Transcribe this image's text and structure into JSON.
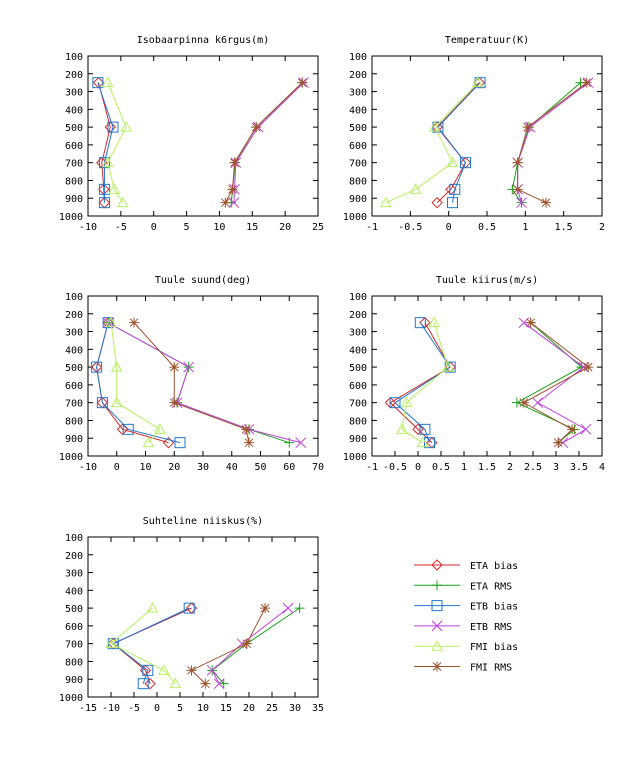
{
  "series_styles": [
    {
      "name": "ETA bias",
      "color": "#d62728",
      "marker": "diamond"
    },
    {
      "name": "ETA RMS",
      "color": "#1aa31a",
      "marker": "plus"
    },
    {
      "name": "ETB bias",
      "color": "#1f77d0",
      "marker": "square"
    },
    {
      "name": "ETB RMS",
      "color": "#c040e0",
      "marker": "cross"
    },
    {
      "name": "FMI bias",
      "color": "#b8f060",
      "marker": "triangle"
    },
    {
      "name": "FMI RMS",
      "color": "#a0522d",
      "marker": "star"
    }
  ],
  "chart_data": [
    {
      "type": "line",
      "title": "Isobaarpinna k6rgus(m)",
      "xlim": [
        -10,
        25
      ],
      "xticks": [
        -10,
        -5,
        0,
        5,
        10,
        15,
        20,
        25
      ],
      "ylim": [
        1000,
        100
      ],
      "yticks": [
        100,
        200,
        300,
        400,
        500,
        600,
        700,
        800,
        900,
        1000
      ],
      "y": [
        925,
        850,
        700,
        500,
        250
      ],
      "series": [
        {
          "name": "ETA bias",
          "x": [
            -7.5,
            -7.6,
            -7.9,
            -6.6,
            -8.4
          ]
        },
        {
          "name": "ETA RMS",
          "x": [
            11.8,
            12.0,
            12.4,
            15.6,
            22.6
          ]
        },
        {
          "name": "ETB bias",
          "x": [
            -7.5,
            -7.5,
            -7.5,
            -6.2,
            -8.5
          ]
        },
        {
          "name": "ETB RMS",
          "x": [
            12.2,
            12.3,
            12.5,
            15.9,
            22.8
          ]
        },
        {
          "name": "FMI bias",
          "x": [
            -4.7,
            -6.0,
            -7.0,
            -4.2,
            -7.0
          ]
        },
        {
          "name": "FMI RMS",
          "x": [
            10.9,
            12.0,
            12.3,
            15.6,
            22.6
          ]
        }
      ]
    },
    {
      "type": "line",
      "title": "Temperatuur(K)",
      "xlim": [
        -1,
        2
      ],
      "xticks": [
        -1,
        -0.5,
        0,
        0.5,
        1,
        1.5,
        2
      ],
      "ylim": [
        1000,
        100
      ],
      "yticks": [
        100,
        200,
        300,
        400,
        500,
        600,
        700,
        800,
        900,
        1000
      ],
      "y": [
        925,
        850,
        700,
        500,
        250
      ],
      "series": [
        {
          "name": "ETA bias",
          "x": [
            -0.15,
            0.03,
            0.22,
            -0.15,
            0.4
          ]
        },
        {
          "name": "ETA RMS",
          "x": [
            0.95,
            0.83,
            0.9,
            1.05,
            1.72
          ]
        },
        {
          "name": "ETB bias",
          "x": [
            0.05,
            0.08,
            0.22,
            -0.14,
            0.41
          ]
        },
        {
          "name": "ETB RMS",
          "x": [
            0.95,
            0.9,
            0.9,
            1.06,
            1.82
          ]
        },
        {
          "name": "FMI bias",
          "x": [
            -0.82,
            -0.43,
            0.05,
            -0.18,
            0.38
          ]
        },
        {
          "name": "FMI RMS",
          "x": [
            1.27,
            0.9,
            0.9,
            1.03,
            1.8
          ]
        }
      ]
    },
    {
      "type": "line",
      "title": "Tuule suund(deg)",
      "xlim": [
        -10,
        70
      ],
      "xticks": [
        -10,
        0,
        10,
        20,
        30,
        40,
        50,
        60,
        70
      ],
      "ylim": [
        1000,
        100
      ],
      "yticks": [
        100,
        200,
        300,
        400,
        500,
        600,
        700,
        800,
        900,
        1000
      ],
      "y": [
        925,
        850,
        700,
        500,
        250
      ],
      "series": [
        {
          "name": "ETA bias",
          "x": [
            18,
            2,
            -5,
            -7,
            -3
          ]
        },
        {
          "name": "ETA RMS",
          "x": [
            60,
            46,
            21,
            25,
            -3
          ]
        },
        {
          "name": "ETB bias",
          "x": [
            22,
            4,
            -5,
            -7,
            -3
          ]
        },
        {
          "name": "ETB RMS",
          "x": [
            64,
            46,
            21,
            25,
            -3
          ]
        },
        {
          "name": "FMI bias",
          "x": [
            11,
            15,
            0,
            0,
            -2
          ]
        },
        {
          "name": "FMI RMS",
          "x": [
            46,
            45,
            20,
            20,
            6
          ]
        }
      ]
    },
    {
      "type": "line",
      "title": "Tuule kiirus(m/s)",
      "xlim": [
        -1,
        4
      ],
      "xticks": [
        -1,
        -0.5,
        0,
        0.5,
        1,
        1.5,
        2,
        2.5,
        3,
        3.5,
        4
      ],
      "ylim": [
        1000,
        100
      ],
      "yticks": [
        100,
        200,
        300,
        400,
        500,
        600,
        700,
        800,
        900,
        1000
      ],
      "y": [
        925,
        850,
        700,
        500,
        250
      ],
      "series": [
        {
          "name": "ETA bias",
          "x": [
            0.3,
            0.0,
            -0.6,
            0.7,
            0.15
          ]
        },
        {
          "name": "ETA RMS",
          "x": [
            3.05,
            3.4,
            2.15,
            3.55,
            2.45
          ]
        },
        {
          "name": "ETB bias",
          "x": [
            0.25,
            0.15,
            -0.5,
            0.7,
            0.05
          ]
        },
        {
          "name": "ETB RMS",
          "x": [
            3.15,
            3.65,
            2.6,
            3.6,
            2.3
          ]
        },
        {
          "name": "FMI bias",
          "x": [
            0.1,
            -0.35,
            -0.25,
            0.65,
            0.35
          ]
        },
        {
          "name": "FMI RMS",
          "x": [
            3.05,
            3.35,
            2.3,
            3.7,
            2.45
          ]
        }
      ]
    },
    {
      "type": "line",
      "title": "Suhteline niiskus(%)",
      "xlim": [
        -15,
        35
      ],
      "xticks": [
        -15,
        -10,
        -5,
        0,
        5,
        10,
        15,
        20,
        25,
        30,
        35
      ],
      "ylim": [
        1000,
        100
      ],
      "yticks": [
        100,
        200,
        300,
        400,
        500,
        600,
        700,
        800,
        900,
        1000
      ],
      "y": [
        925,
        850,
        700,
        500
      ],
      "series": [
        {
          "name": "ETA bias",
          "x": [
            -1.5,
            -2.5,
            -9.5,
            7.5
          ]
        },
        {
          "name": "ETA RMS",
          "x": [
            14.5,
            12.0,
            19.5,
            31.0
          ]
        },
        {
          "name": "ETB bias",
          "x": [
            -3.0,
            -2.0,
            -9.5,
            7.0
          ]
        },
        {
          "name": "ETB RMS",
          "x": [
            13.5,
            12.0,
            18.5,
            28.5
          ]
        },
        {
          "name": "FMI bias",
          "x": [
            4.0,
            1.5,
            -10.0,
            -1.0
          ]
        },
        {
          "name": "FMI RMS",
          "x": [
            10.5,
            7.5,
            19.5,
            23.5
          ]
        }
      ]
    }
  ]
}
